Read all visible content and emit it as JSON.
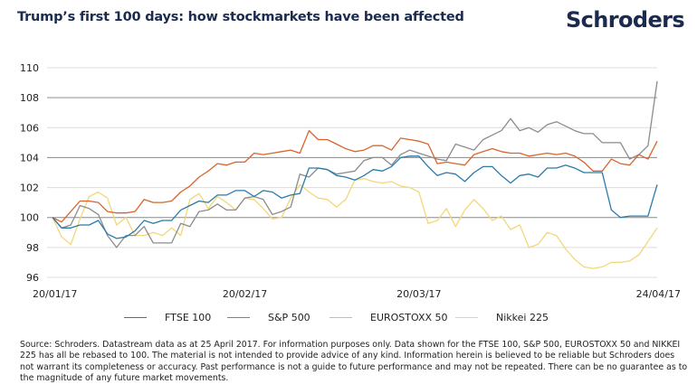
{
  "header": {
    "title": "Trump’s first 100 days: how stockmarkets have been affected",
    "logo": "Schroders"
  },
  "footnote": "Source: Schroders. Datastream data as at 25 April 2017. For information purposes only. Data shown for the FTSE 100, S&P 500, EUROSTOXX 50 and NIKKEI 225 has all be rebased to 100. The material is not intended to provide advice of any kind. Information herein is believed to be reliable but Schroders does not warrant its completeness or accuracy. Past performance is not a guide to future performance and may not be repeated. There can be no guarantee as to the magnitude of any future market movements.",
  "chart_data": {
    "type": "line",
    "title": "Trump’s first 100 days: how stockmarkets have been affected",
    "xlabel": "",
    "ylabel": "",
    "ylim": [
      96,
      110
    ],
    "yticks": [
      96,
      98,
      100,
      102,
      104,
      106,
      108,
      110
    ],
    "xtick_labels": [
      "20/01/17",
      "20/02/17",
      "20/03/17",
      "24/04/17"
    ],
    "xtick_positions": [
      0,
      21,
      40,
      66
    ],
    "grid": true,
    "legend_position": "bottom",
    "series": [
      {
        "name": "FTSE 100",
        "color": "#2b7bab",
        "values": [
          100.0,
          99.3,
          99.3,
          99.5,
          99.5,
          99.8,
          98.9,
          98.6,
          98.7,
          99.1,
          99.8,
          99.6,
          99.8,
          99.8,
          100.5,
          100.8,
          101.1,
          101.0,
          101.5,
          101.5,
          101.8,
          101.8,
          101.4,
          101.8,
          101.7,
          101.3,
          101.5,
          101.6,
          103.3,
          103.3,
          103.2,
          102.8,
          102.7,
          102.5,
          102.8,
          103.2,
          103.1,
          103.4,
          104.0,
          104.1,
          104.1,
          103.4,
          102.8,
          103.0,
          102.9,
          102.4,
          103.0,
          103.4,
          103.4,
          102.8,
          102.3,
          102.8,
          102.9,
          102.7,
          103.3,
          103.3,
          103.5,
          103.3,
          103.0,
          103.0,
          103.0,
          100.5,
          100.0,
          100.1,
          100.1,
          100.1,
          102.2
        ]
      },
      {
        "name": "S&P 500",
        "color": "#d9652b",
        "values": [
          100.0,
          99.7,
          100.4,
          101.1,
          101.1,
          101.0,
          100.4,
          100.3,
          100.3,
          100.4,
          101.2,
          101.0,
          101.0,
          101.1,
          101.7,
          102.1,
          102.7,
          103.1,
          103.6,
          103.5,
          103.7,
          103.7,
          104.3,
          104.2,
          104.3,
          104.4,
          104.5,
          104.3,
          105.8,
          105.2,
          105.2,
          104.9,
          104.6,
          104.4,
          104.5,
          104.8,
          104.8,
          104.5,
          105.3,
          105.2,
          105.1,
          104.9,
          103.6,
          103.7,
          103.6,
          103.5,
          104.2,
          104.4,
          104.6,
          104.4,
          104.3,
          104.3,
          104.1,
          104.2,
          104.3,
          104.2,
          104.3,
          104.1,
          103.7,
          103.1,
          103.1,
          103.9,
          103.6,
          103.5,
          104.2,
          103.9,
          105.1
        ]
      },
      {
        "name": "EUROSTOXX 50",
        "color": "#8c8c8c",
        "values": [
          100.0,
          99.3,
          99.5,
          100.8,
          100.6,
          100.2,
          98.8,
          98.0,
          98.8,
          98.8,
          99.4,
          98.3,
          98.3,
          98.3,
          99.6,
          99.4,
          100.4,
          100.5,
          100.9,
          100.5,
          100.5,
          101.3,
          101.4,
          101.2,
          100.2,
          100.4,
          100.7,
          102.9,
          102.7,
          103.3,
          103.2,
          102.9,
          103.0,
          103.1,
          103.8,
          104.0,
          104.0,
          103.5,
          104.2,
          104.5,
          104.3,
          104.1,
          103.9,
          103.8,
          104.9,
          104.7,
          104.5,
          105.2,
          105.5,
          105.8,
          106.6,
          105.8,
          106.0,
          105.7,
          106.2,
          106.4,
          106.1,
          105.8,
          105.6,
          105.6,
          105.0,
          105.0,
          105.0,
          103.9,
          104.2,
          104.8,
          109.1
        ]
      },
      {
        "name": "Nikkei 225",
        "color": "#f2d77a",
        "values": [
          100.0,
          98.7,
          98.2,
          99.9,
          101.4,
          101.7,
          101.3,
          99.5,
          100.0,
          98.8,
          98.8,
          99.0,
          98.8,
          99.3,
          98.8,
          101.2,
          101.6,
          100.6,
          101.4,
          101.0,
          100.5,
          101.3,
          101.2,
          100.6,
          99.9,
          100.0,
          101.3,
          102.2,
          101.7,
          101.3,
          101.2,
          100.7,
          101.2,
          102.5,
          102.6,
          102.4,
          102.3,
          102.4,
          102.1,
          102.0,
          101.7,
          99.6,
          99.8,
          100.6,
          99.4,
          100.5,
          101.2,
          100.6,
          99.8,
          100.1,
          99.2,
          99.5,
          98.0,
          98.2,
          99.0,
          98.8,
          97.9,
          97.2,
          96.7,
          96.6,
          96.7,
          97.0,
          97.0,
          97.1,
          97.5,
          98.4,
          99.3
        ]
      }
    ]
  }
}
